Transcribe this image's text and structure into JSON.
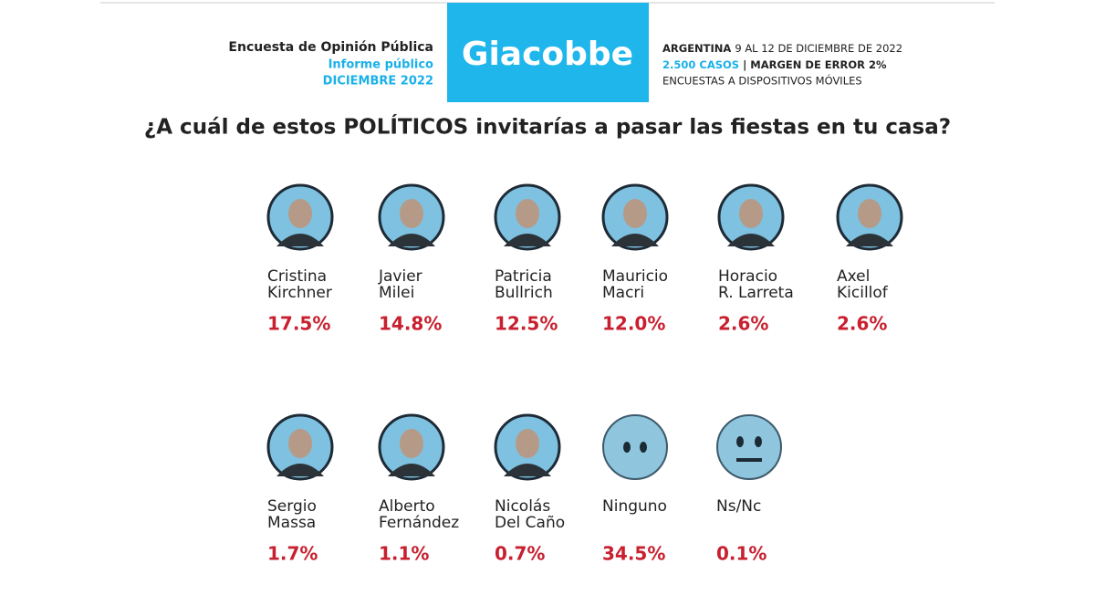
{
  "header": {
    "left": [
      "Encuesta de Opinión Pública",
      "Informe público",
      "DICIEMBRE 2022"
    ],
    "brand": "Giacobbe",
    "right": {
      "line1": [
        "ARGENTINA",
        "9 AL 12 DE DICIEMBRE DE 2022"
      ],
      "line2": [
        "2.500 CASOS",
        "| MARGEN DE ERROR 2%"
      ],
      "line3": "ENCUESTAS A DISPOSITIVOS MÓVILES"
    }
  },
  "question": "¿A cuál de estos POLÍTICOS invitarías a pasar las fiestas en tu casa?",
  "rows": [
    [
      {
        "name": [
          "Cristina",
          "Kirchner"
        ],
        "value": "17.5%"
      },
      {
        "name": [
          "Javier",
          "Milei"
        ],
        "value": "14.8%"
      },
      {
        "name": [
          "Patricia",
          "Bullrich"
        ],
        "value": "12.5%"
      },
      {
        "name": [
          "Mauricio",
          "Macri"
        ],
        "value": "12.0%"
      },
      {
        "name": [
          "Horacio",
          "R. Larreta"
        ],
        "value": "2.6%"
      },
      {
        "name": [
          "Axel",
          "Kicillof"
        ],
        "value": "2.6%"
      }
    ],
    [
      {
        "name": [
          "Sergio",
          "Massa"
        ],
        "value": "1.7%"
      },
      {
        "name": [
          "Alberto",
          "Fernández"
        ],
        "value": "1.1%"
      },
      {
        "name": [
          "Nicolás",
          "Del Caño"
        ],
        "value": "0.7%"
      },
      {
        "name": [
          "Ninguno"
        ],
        "value": "34.5%"
      },
      {
        "name": [
          "Ns/Nc"
        ],
        "value": "0.1%"
      }
    ]
  ]
}
